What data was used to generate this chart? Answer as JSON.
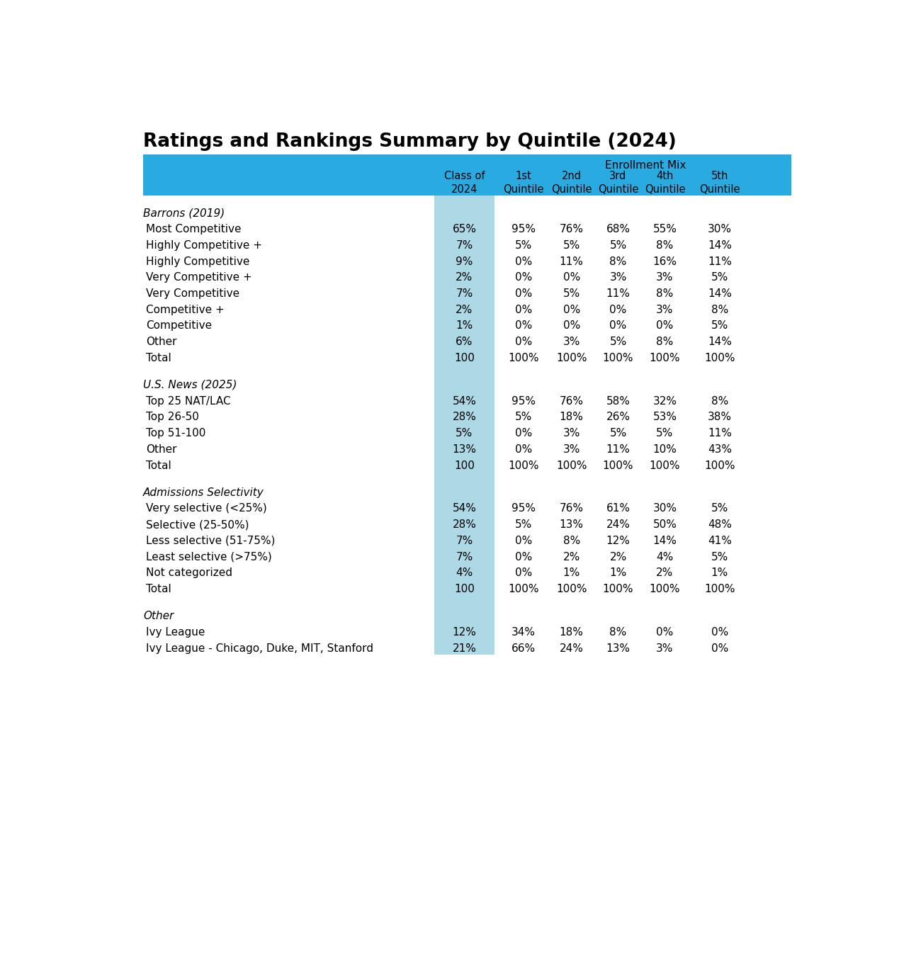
{
  "title": "Ratings and Rankings Summary by Quintile (2024)",
  "header_bg_color": "#29ABE2",
  "col1_highlight_color": "#ADD8E6",
  "sections": [
    {
      "title": "Barrons (2019)",
      "rows": [
        [
          "Most Competitive",
          "65%",
          "95%",
          "76%",
          "68%",
          "55%",
          "30%"
        ],
        [
          "Highly Competitive +",
          "7%",
          "5%",
          "5%",
          "5%",
          "8%",
          "14%"
        ],
        [
          "Highly Competitive",
          "9%",
          "0%",
          "11%",
          "8%",
          "16%",
          "11%"
        ],
        [
          "Very Competitive +",
          "2%",
          "0%",
          "0%",
          "3%",
          "3%",
          "5%"
        ],
        [
          "Very Competitive",
          "7%",
          "0%",
          "5%",
          "11%",
          "8%",
          "14%"
        ],
        [
          "Competitive +",
          "2%",
          "0%",
          "0%",
          "0%",
          "3%",
          "8%"
        ],
        [
          "Competitive",
          "1%",
          "0%",
          "0%",
          "0%",
          "0%",
          "5%"
        ],
        [
          "Other",
          "6%",
          "0%",
          "3%",
          "5%",
          "8%",
          "14%"
        ],
        [
          "Total",
          "100",
          "100%",
          "100%",
          "100%",
          "100%",
          "100%"
        ]
      ]
    },
    {
      "title": "U.S. News (2025)",
      "rows": [
        [
          "Top 25 NAT/LAC",
          "54%",
          "95%",
          "76%",
          "58%",
          "32%",
          "8%"
        ],
        [
          "Top 26-50",
          "28%",
          "5%",
          "18%",
          "26%",
          "53%",
          "38%"
        ],
        [
          "Top 51-100",
          "5%",
          "0%",
          "3%",
          "5%",
          "5%",
          "11%"
        ],
        [
          "Other",
          "13%",
          "0%",
          "3%",
          "11%",
          "10%",
          "43%"
        ],
        [
          "Total",
          "100",
          "100%",
          "100%",
          "100%",
          "100%",
          "100%"
        ]
      ]
    },
    {
      "title": "Admissions Selectivity",
      "rows": [
        [
          "Very selective (<25%)",
          "54%",
          "95%",
          "76%",
          "61%",
          "30%",
          "5%"
        ],
        [
          "Selective (25-50%)",
          "28%",
          "5%",
          "13%",
          "24%",
          "50%",
          "48%"
        ],
        [
          "Less selective (51-75%)",
          "7%",
          "0%",
          "8%",
          "12%",
          "14%",
          "41%"
        ],
        [
          "Least selective (>75%)",
          "7%",
          "0%",
          "2%",
          "2%",
          "4%",
          "5%"
        ],
        [
          "Not categorized",
          "4%",
          "0%",
          "1%",
          "1%",
          "2%",
          "1%"
        ],
        [
          "Total",
          "100",
          "100%",
          "100%",
          "100%",
          "100%",
          "100%"
        ]
      ]
    },
    {
      "title": "Other",
      "rows": [
        [
          "Ivy League",
          "12%",
          "34%",
          "18%",
          "8%",
          "0%",
          "0%"
        ],
        [
          "Ivy League - Chicago, Duke, MIT, Stanford",
          "21%",
          "66%",
          "24%",
          "13%",
          "3%",
          "0%"
        ]
      ]
    }
  ]
}
